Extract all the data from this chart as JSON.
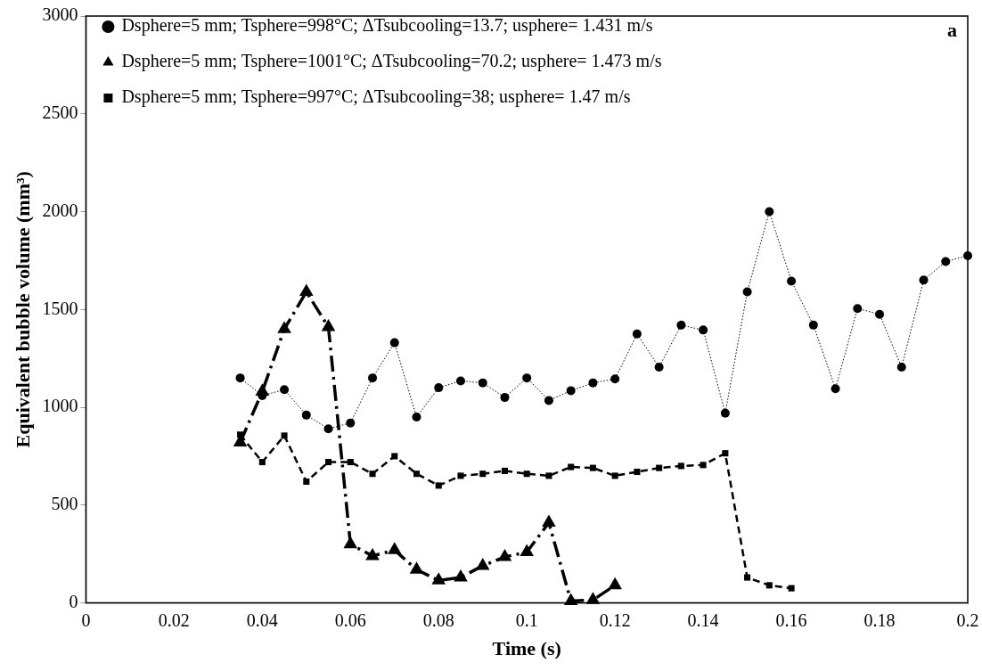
{
  "chart_data": {
    "type": "line",
    "xlabel": "Time (s)",
    "ylabel": "Equivalent bubble volume (mm³)",
    "xlim": [
      0,
      0.2
    ],
    "xticks": [
      0,
      0.02,
      0.04,
      0.06,
      0.08,
      0.1,
      0.12,
      0.14,
      0.16,
      0.18,
      0.2
    ],
    "ylim": [
      0,
      3000
    ],
    "yticks": [
      0,
      500,
      1000,
      1500,
      2000,
      2500,
      3000
    ],
    "grid": false,
    "legend": "top left",
    "annotations": [
      "a"
    ],
    "series": [
      {
        "name": "Dsphere=5 mm; Tsphere=998°C; ΔTsubcooling=13.7; usphere= 1.431 m/s",
        "color": "#000000",
        "marker": "circle",
        "line_style": "dotted",
        "x": [
          0.035,
          0.04,
          0.045,
          0.05,
          0.055,
          0.06,
          0.065,
          0.07,
          0.075,
          0.08,
          0.085,
          0.09,
          0.095,
          0.1,
          0.105,
          0.11,
          0.115,
          0.12,
          0.125,
          0.13,
          0.135,
          0.14,
          0.145,
          0.15,
          0.155,
          0.16,
          0.165,
          0.17,
          0.175,
          0.18,
          0.185,
          0.19,
          0.195,
          0.2
        ],
        "values": [
          1150,
          1060,
          1090,
          960,
          890,
          920,
          1150,
          1330,
          950,
          1100,
          1135,
          1125,
          1050,
          1150,
          1035,
          1085,
          1125,
          1145,
          1375,
          1205,
          1420,
          1395,
          970,
          1590,
          2000,
          1645,
          1420,
          1095,
          1505,
          1475,
          1205,
          1650,
          1745,
          1775
        ]
      },
      {
        "name": "Dsphere=5 mm; Tsphere=1001°C; ΔTsubcooling=70.2; usphere= 1.473 m/s",
        "color": "#000000",
        "marker": "triangle",
        "line_style": "dashdot",
        "x": [
          0.035,
          0.04,
          0.045,
          0.05,
          0.055,
          0.06,
          0.065,
          0.07,
          0.075,
          0.08,
          0.085,
          0.09,
          0.095,
          0.1,
          0.105,
          0.11,
          0.115,
          0.12
        ],
        "values": [
          820,
          1080,
          1400,
          1590,
          1410,
          300,
          240,
          270,
          170,
          115,
          130,
          190,
          235,
          260,
          410,
          10,
          15,
          90
        ]
      },
      {
        "name": "Dsphere=5 mm; Tsphere=997°C; ΔTsubcooling=38; usphere= 1.47 m/s",
        "color": "#000000",
        "marker": "square",
        "line_style": "dashed",
        "x": [
          0.035,
          0.04,
          0.045,
          0.05,
          0.055,
          0.06,
          0.065,
          0.07,
          0.075,
          0.08,
          0.085,
          0.09,
          0.095,
          0.1,
          0.105,
          0.11,
          0.115,
          0.12,
          0.125,
          0.13,
          0.135,
          0.14,
          0.145,
          0.15,
          0.155,
          0.16
        ],
        "values": [
          860,
          720,
          855,
          620,
          720,
          720,
          660,
          750,
          660,
          600,
          650,
          660,
          675,
          660,
          650,
          695,
          690,
          650,
          670,
          690,
          700,
          705,
          765,
          130,
          90,
          75
        ]
      }
    ]
  }
}
